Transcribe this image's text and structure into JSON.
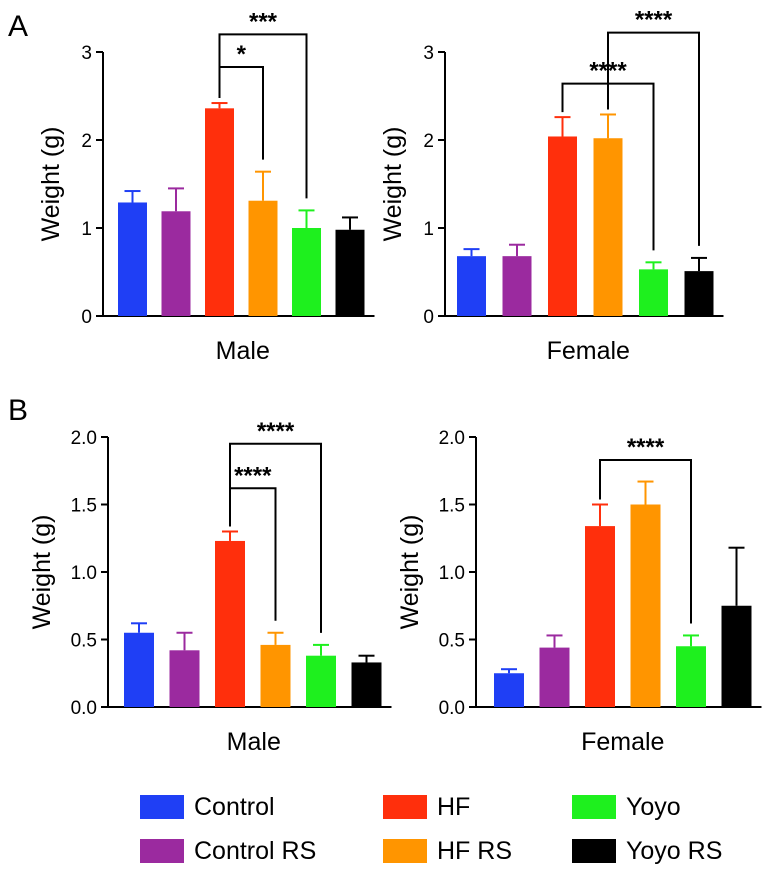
{
  "panel_letters": [
    "A",
    "B"
  ],
  "chart_data": [
    {
      "type": "bar",
      "panel": "A",
      "title": "",
      "xlabel": "Male",
      "ylabel": "Weight (g)",
      "ylim": [
        0,
        3
      ],
      "yticks": [
        "0",
        "1",
        "2",
        "3"
      ],
      "ytick_values": [
        0,
        1,
        2,
        3
      ],
      "categories": [
        "Control",
        "Control RS",
        "HF",
        "HF RS",
        "Yoyo",
        "Yoyo RS"
      ],
      "values": [
        1.29,
        1.19,
        2.36,
        1.31,
        1.0,
        0.98
      ],
      "errors": [
        0.13,
        0.26,
        0.06,
        0.33,
        0.2,
        0.14
      ],
      "comparisons": [
        {
          "from": 2,
          "to": 3,
          "label": "*",
          "y": 2.83
        },
        {
          "from": 2,
          "to": 4,
          "label": "***",
          "y": 3.2
        }
      ]
    },
    {
      "type": "bar",
      "panel": "A",
      "title": "",
      "xlabel": "Female",
      "ylabel": "Weight (g)",
      "ylim": [
        0,
        3
      ],
      "yticks": [
        "0",
        "1",
        "2",
        "3"
      ],
      "ytick_values": [
        0,
        1,
        2,
        3
      ],
      "categories": [
        "Control",
        "Control RS",
        "HF",
        "HF RS",
        "Yoyo",
        "Yoyo RS"
      ],
      "values": [
        0.68,
        0.68,
        2.04,
        2.02,
        0.53,
        0.51
      ],
      "errors": [
        0.08,
        0.13,
        0.22,
        0.27,
        0.08,
        0.15
      ],
      "comparisons": [
        {
          "from": 2,
          "to": 4,
          "label": "****",
          "y": 2.64
        },
        {
          "from": 3,
          "to": 5,
          "label": "****",
          "y": 3.22
        }
      ]
    },
    {
      "type": "bar",
      "panel": "B",
      "title": "",
      "xlabel": "Male",
      "ylabel": "Weight (g)",
      "ylim": [
        0,
        2
      ],
      "yticks": [
        "0.0",
        "0.5",
        "1.0",
        "1.5",
        "2.0"
      ],
      "ytick_values": [
        0,
        0.5,
        1,
        1.5,
        2
      ],
      "categories": [
        "Control",
        "Control RS",
        "HF",
        "HF RS",
        "Yoyo",
        "Yoyo RS"
      ],
      "values": [
        0.55,
        0.42,
        1.23,
        0.46,
        0.38,
        0.33
      ],
      "errors": [
        0.07,
        0.13,
        0.07,
        0.09,
        0.08,
        0.05
      ],
      "comparisons": [
        {
          "from": 2,
          "to": 3,
          "label": "****",
          "y": 1.62
        },
        {
          "from": 2,
          "to": 4,
          "label": "****",
          "y": 1.95
        }
      ]
    },
    {
      "type": "bar",
      "panel": "B",
      "title": "",
      "xlabel": "Female",
      "ylabel": "Weight (g)",
      "ylim": [
        0,
        2
      ],
      "yticks": [
        "0.0",
        "0.5",
        "1.0",
        "1.5",
        "2.0"
      ],
      "ytick_values": [
        0,
        0.5,
        1,
        1.5,
        2
      ],
      "categories": [
        "Control",
        "Control RS",
        "HF",
        "HF RS",
        "Yoyo",
        "Yoyo RS"
      ],
      "values": [
        0.25,
        0.44,
        1.34,
        1.5,
        0.45,
        0.75
      ],
      "errors": [
        0.03,
        0.09,
        0.16,
        0.17,
        0.08,
        0.43
      ],
      "comparisons": [
        {
          "from": 2,
          "to": 4,
          "label": "****",
          "y": 1.83
        }
      ]
    }
  ],
  "colors": [
    "#1f3ff5",
    "#9b2a9f",
    "#ff2f0c",
    "#ff9500",
    "#1ef01e",
    "#000000"
  ],
  "legend": {
    "items": [
      {
        "label": "Control",
        "color": "#1f3ff5"
      },
      {
        "label": "HF",
        "color": "#ff2f0c"
      },
      {
        "label": "Yoyo",
        "color": "#1ef01e"
      },
      {
        "label": "Control RS",
        "color": "#9b2a9f"
      },
      {
        "label": "HF RS",
        "color": "#ff9500"
      },
      {
        "label": "Yoyo RS",
        "color": "#000000"
      }
    ]
  }
}
